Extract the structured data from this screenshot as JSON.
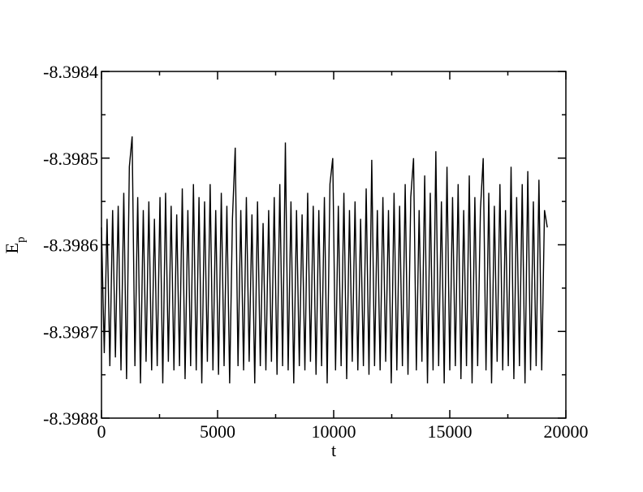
{
  "chart_data": {
    "type": "line",
    "xlabel": "t",
    "ylabel": "E",
    "ylabel_subscript": "p",
    "color": "#000000",
    "xlim": [
      0,
      20000
    ],
    "xticks": [
      0,
      5000,
      10000,
      15000,
      20000
    ],
    "x_minor_ticks": [
      2500,
      7500,
      12500,
      17500
    ],
    "ylim": [
      -8.3988,
      -8.3984
    ],
    "yticks": [
      -8.3988,
      -8.3987,
      -8.3986,
      -8.3985,
      -8.3984
    ],
    "y_minor_ticks": [
      -8.39875,
      -8.39865,
      -8.39855,
      -8.39845
    ],
    "x": [
      0,
      120,
      240,
      360,
      480,
      600,
      720,
      840,
      960,
      1080,
      1200,
      1320,
      1440,
      1560,
      1680,
      1800,
      1920,
      2040,
      2160,
      2280,
      2400,
      2520,
      2640,
      2760,
      2880,
      3000,
      3120,
      3240,
      3360,
      3480,
      3600,
      3720,
      3840,
      3960,
      4080,
      4200,
      4320,
      4440,
      4560,
      4680,
      4800,
      4920,
      5040,
      5160,
      5280,
      5400,
      5520,
      5640,
      5760,
      5880,
      6000,
      6120,
      6240,
      6360,
      6480,
      6600,
      6720,
      6840,
      6960,
      7080,
      7200,
      7320,
      7440,
      7560,
      7680,
      7800,
      7920,
      8040,
      8160,
      8280,
      8400,
      8520,
      8640,
      8760,
      8880,
      9000,
      9120,
      9240,
      9360,
      9480,
      9600,
      9720,
      9840,
      9960,
      10080,
      10200,
      10320,
      10440,
      10560,
      10680,
      10800,
      10920,
      11040,
      11160,
      11280,
      11400,
      11520,
      11640,
      11760,
      11880,
      12000,
      12120,
      12240,
      12360,
      12480,
      12600,
      12720,
      12840,
      12960,
      13080,
      13200,
      13320,
      13440,
      13560,
      13680,
      13800,
      13920,
      14040,
      14160,
      14280,
      14400,
      14520,
      14640,
      14760,
      14880,
      15000,
      15120,
      15240,
      15360,
      15480,
      15600,
      15720,
      15840,
      15960,
      16080,
      16200,
      16320,
      16440,
      16560,
      16680,
      16800,
      16920,
      17040,
      17160,
      17280,
      17400,
      17520,
      17640,
      17760,
      17880,
      18000,
      18120,
      18240,
      18360,
      18480,
      18600,
      18720,
      18840,
      18960,
      19080,
      19200
    ],
    "values": [
      -8.39858,
      -8.398725,
      -8.39857,
      -8.39874,
      -8.39856,
      -8.39873,
      -8.398555,
      -8.398745,
      -8.39854,
      -8.398755,
      -8.39851,
      -8.398475,
      -8.39874,
      -8.398545,
      -8.39876,
      -8.39856,
      -8.398735,
      -8.39855,
      -8.398745,
      -8.39857,
      -8.39874,
      -8.398545,
      -8.39876,
      -8.39854,
      -8.398735,
      -8.398555,
      -8.398745,
      -8.398565,
      -8.39874,
      -8.398535,
      -8.398755,
      -8.39856,
      -8.39874,
      -8.39853,
      -8.398745,
      -8.398545,
      -8.39876,
      -8.39855,
      -8.398735,
      -8.39853,
      -8.398745,
      -8.39856,
      -8.39875,
      -8.39854,
      -8.39874,
      -8.398555,
      -8.39876,
      -8.39857,
      -8.398488,
      -8.39874,
      -8.39856,
      -8.398745,
      -8.398545,
      -8.398735,
      -8.398565,
      -8.39876,
      -8.39855,
      -8.39874,
      -8.398575,
      -8.398745,
      -8.39856,
      -8.398735,
      -8.398545,
      -8.39875,
      -8.39853,
      -8.39874,
      -8.398482,
      -8.398745,
      -8.39855,
      -8.39876,
      -8.39856,
      -8.39874,
      -8.398565,
      -8.398745,
      -8.39854,
      -8.398735,
      -8.398555,
      -8.39875,
      -8.39856,
      -8.39874,
      -8.398545,
      -8.39876,
      -8.39853,
      -8.3985,
      -8.398745,
      -8.398555,
      -8.39874,
      -8.39854,
      -8.398755,
      -8.39856,
      -8.398735,
      -8.39855,
      -8.398745,
      -8.39857,
      -8.39874,
      -8.398535,
      -8.39875,
      -8.398502,
      -8.39874,
      -8.39856,
      -8.398745,
      -8.398545,
      -8.398735,
      -8.39856,
      -8.39876,
      -8.39854,
      -8.398745,
      -8.398555,
      -8.39874,
      -8.39853,
      -8.39875,
      -8.398545,
      -8.3985,
      -8.398745,
      -8.39856,
      -8.398735,
      -8.39852,
      -8.39876,
      -8.39854,
      -8.398745,
      -8.398492,
      -8.39874,
      -8.39855,
      -8.39876,
      -8.39851,
      -8.398745,
      -8.398545,
      -8.39874,
      -8.39853,
      -8.398755,
      -8.39856,
      -8.39874,
      -8.39852,
      -8.39876,
      -8.398545,
      -8.39874,
      -8.39856,
      -8.3985,
      -8.398745,
      -8.39854,
      -8.39876,
      -8.398555,
      -8.398735,
      -8.39853,
      -8.398745,
      -8.39856,
      -8.39874,
      -8.39851,
      -8.398755,
      -8.398545,
      -8.39874,
      -8.39853,
      -8.39876,
      -8.398515,
      -8.398745,
      -8.39855,
      -8.39874,
      -8.398525,
      -8.398745,
      -8.39856,
      -8.39858
    ]
  }
}
